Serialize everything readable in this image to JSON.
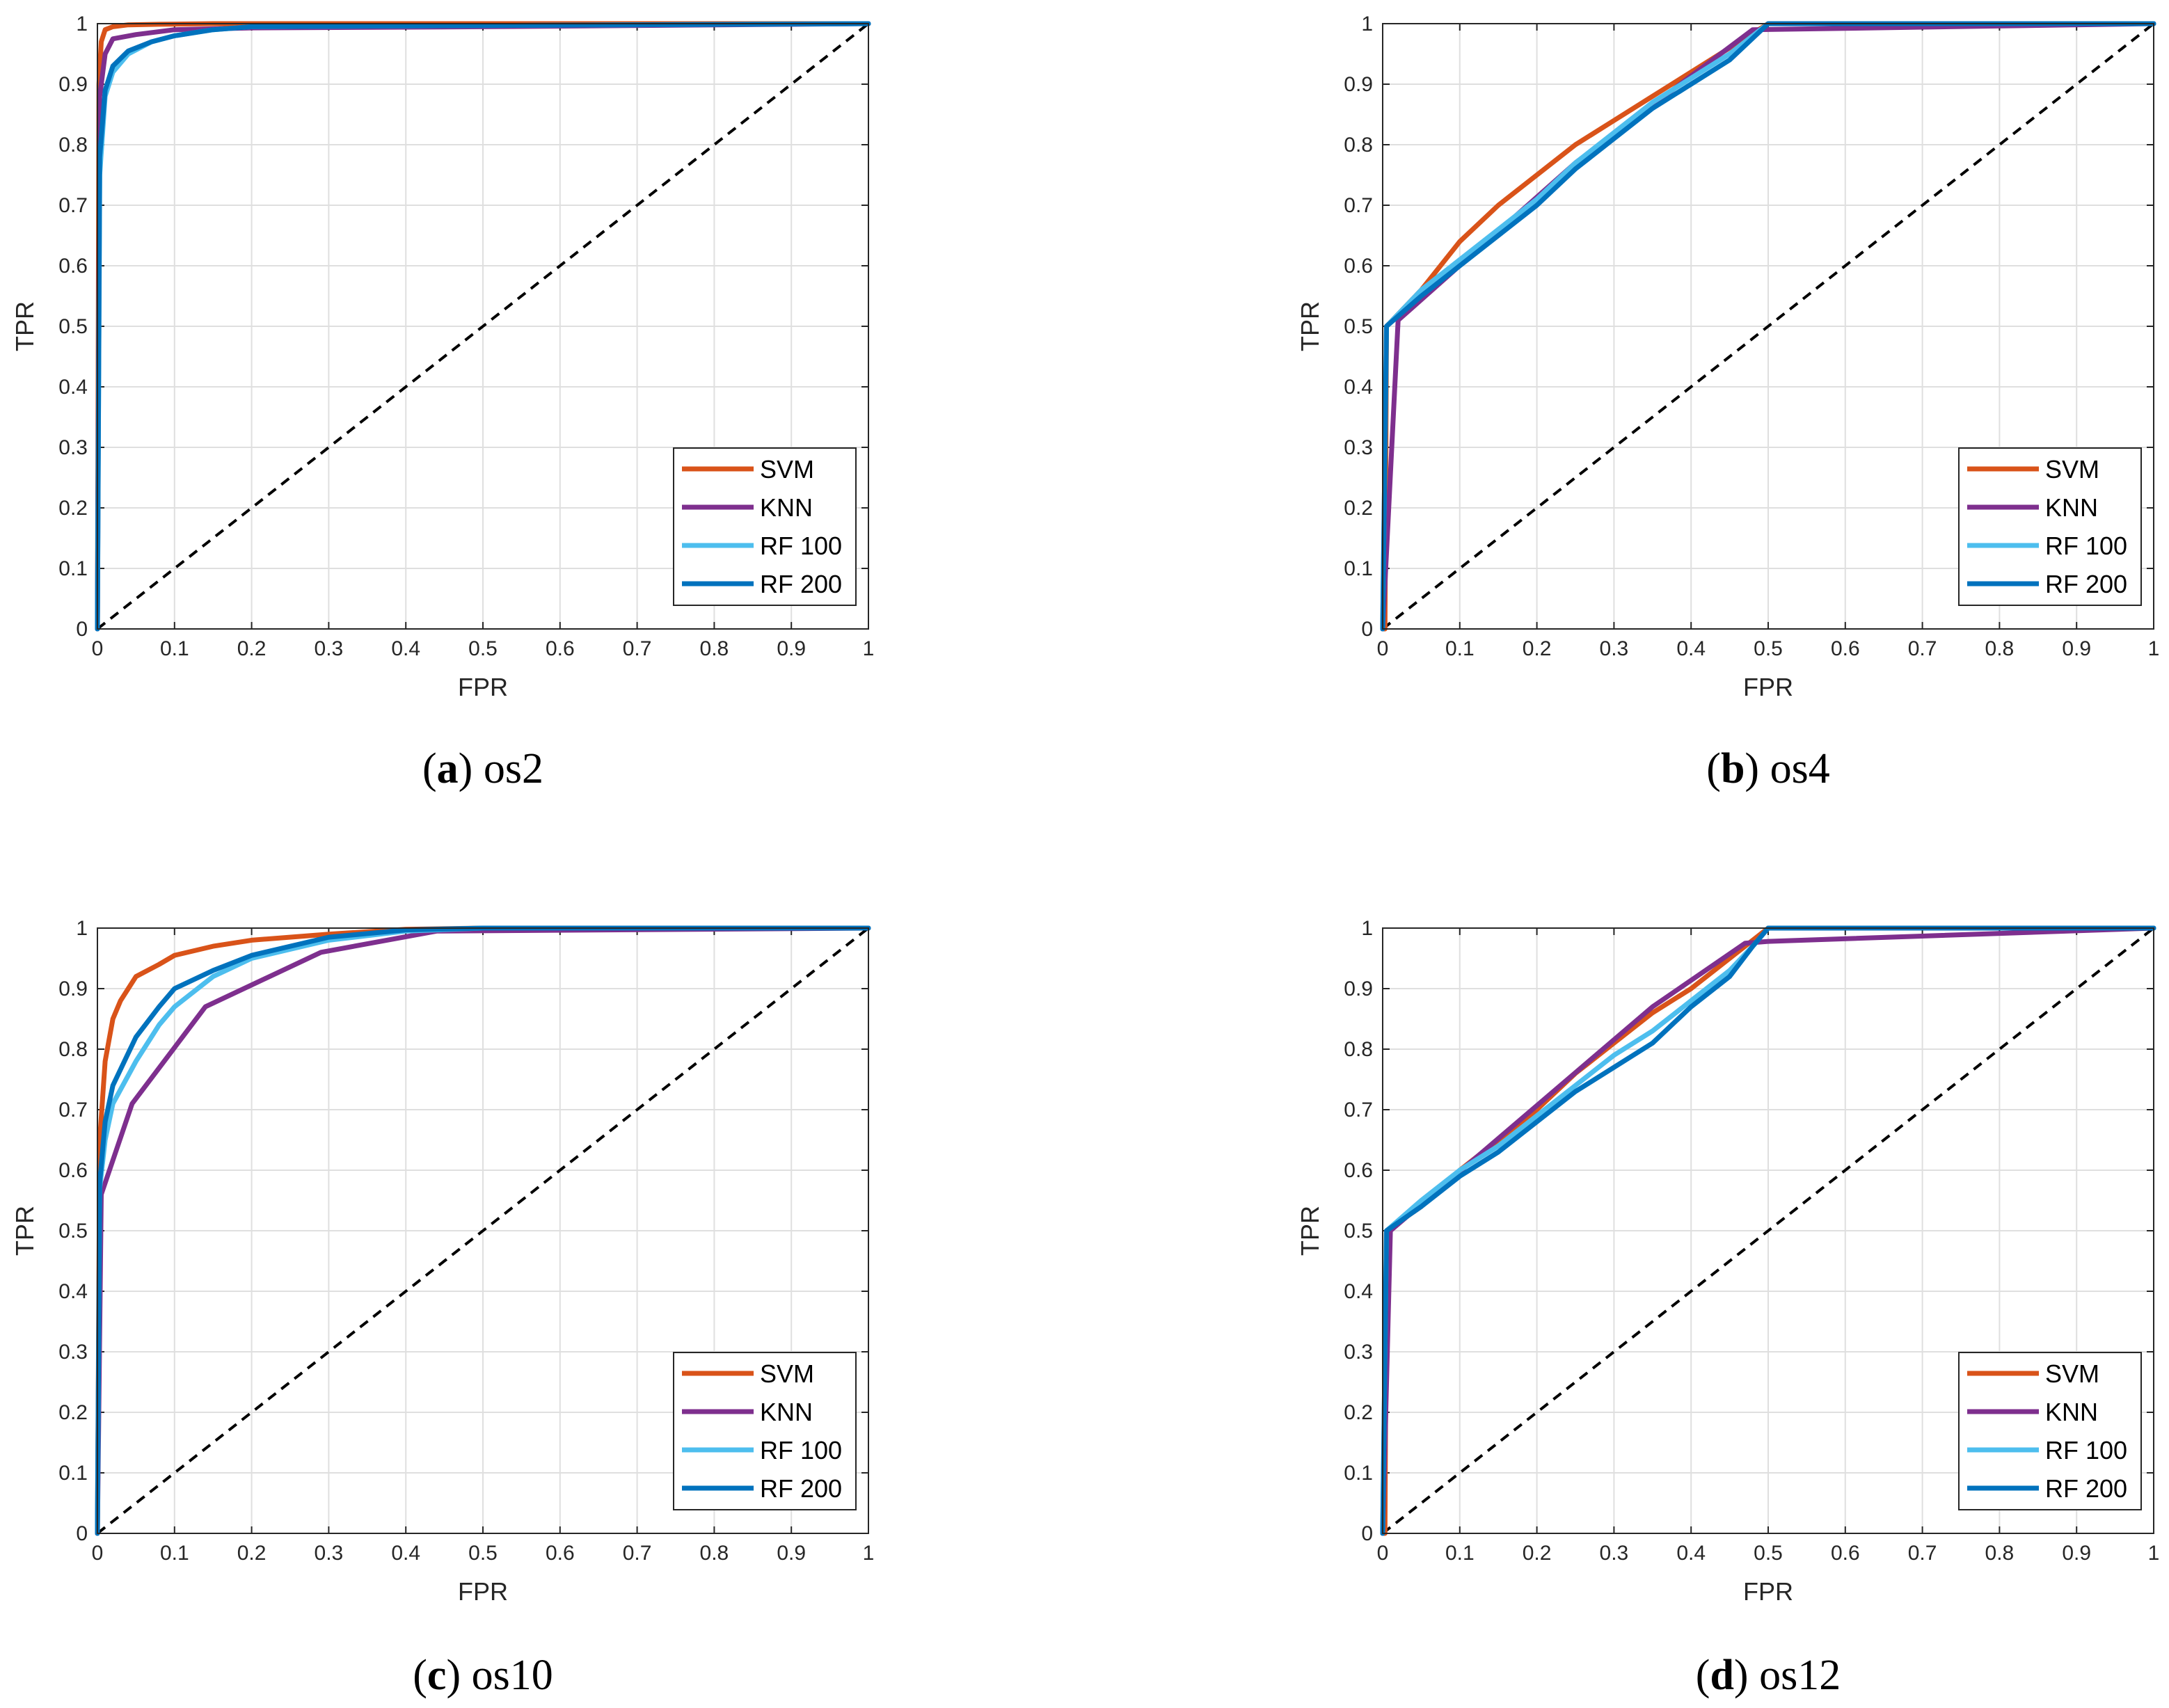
{
  "chart_data": [
    {
      "type": "line",
      "panel": "a",
      "caption": {
        "letter": "a",
        "name": "os2"
      },
      "xlabel": "FPR",
      "ylabel": "TPR",
      "xlim": [
        0,
        1
      ],
      "ylim": [
        0,
        1
      ],
      "grid": true,
      "legend_position": "bottom-right",
      "x_ticks": [
        "0",
        "0.1",
        "0.2",
        "0.3",
        "0.4",
        "0.5",
        "0.6",
        "0.7",
        "0.8",
        "0.9",
        "1"
      ],
      "y_ticks": [
        "0",
        "0.1",
        "0.2",
        "0.3",
        "0.4",
        "0.5",
        "0.6",
        "0.7",
        "0.8",
        "0.9",
        "1"
      ],
      "reference_line": {
        "style": "dashed",
        "x": [
          0,
          1
        ],
        "y": [
          0,
          1
        ]
      },
      "series": [
        {
          "name": "SVM",
          "color": "#D95319",
          "x": [
            0,
            0.002,
            0.005,
            0.01,
            0.02,
            0.04,
            0.08,
            0.15,
            1
          ],
          "y": [
            0,
            0.9,
            0.97,
            0.99,
            0.995,
            0.998,
            0.999,
            1,
            1
          ]
        },
        {
          "name": "KNN",
          "color": "#7E2F8E",
          "x": [
            0,
            0.003,
            0.01,
            0.02,
            0.05,
            0.1,
            0.2,
            0.5,
            1
          ],
          "y": [
            0,
            0.88,
            0.95,
            0.975,
            0.982,
            0.99,
            0.993,
            0.995,
            1
          ]
        },
        {
          "name": "RF 100",
          "color": "#4DBEEE",
          "x": [
            0,
            0.003,
            0.01,
            0.02,
            0.04,
            0.07,
            0.1,
            0.15,
            0.2,
            1
          ],
          "y": [
            0,
            0.75,
            0.88,
            0.92,
            0.95,
            0.97,
            0.98,
            0.99,
            0.995,
            1
          ]
        },
        {
          "name": "RF 200",
          "color": "#0072BD",
          "x": [
            0,
            0.003,
            0.01,
            0.02,
            0.04,
            0.07,
            0.1,
            0.15,
            0.2,
            1
          ],
          "y": [
            0,
            0.78,
            0.89,
            0.93,
            0.955,
            0.97,
            0.98,
            0.99,
            0.995,
            1
          ]
        }
      ]
    },
    {
      "type": "line",
      "panel": "b",
      "caption": {
        "letter": "b",
        "name": "os4"
      },
      "xlabel": "FPR",
      "ylabel": "TPR",
      "xlim": [
        0,
        1
      ],
      "ylim": [
        0,
        1
      ],
      "grid": true,
      "legend_position": "bottom-right",
      "x_ticks": [
        "0",
        "0.1",
        "0.2",
        "0.3",
        "0.4",
        "0.5",
        "0.6",
        "0.7",
        "0.8",
        "0.9",
        "1"
      ],
      "y_ticks": [
        "0",
        "0.1",
        "0.2",
        "0.3",
        "0.4",
        "0.5",
        "0.6",
        "0.7",
        "0.8",
        "0.9",
        "1"
      ],
      "reference_line": {
        "style": "dashed",
        "x": [
          0,
          1
        ],
        "y": [
          0,
          1
        ]
      },
      "series": [
        {
          "name": "SVM",
          "color": "#D95319",
          "x": [
            0,
            0.003,
            0.005,
            0.02,
            0.05,
            0.1,
            0.15,
            0.2,
            0.25,
            0.3,
            0.35,
            0.4,
            0.45,
            0.5,
            1
          ],
          "y": [
            0,
            0,
            0.5,
            0.52,
            0.56,
            0.64,
            0.7,
            0.75,
            0.8,
            0.84,
            0.88,
            0.92,
            0.96,
            1,
            1
          ]
        },
        {
          "name": "KNN",
          "color": "#7E2F8E",
          "x": [
            0,
            0.02,
            0.25,
            0.48,
            1
          ],
          "y": [
            0,
            0.51,
            0.77,
            0.99,
            1
          ]
        },
        {
          "name": "RF 100",
          "color": "#4DBEEE",
          "x": [
            0,
            0.005,
            0.05,
            0.1,
            0.15,
            0.2,
            0.25,
            0.3,
            0.35,
            0.4,
            0.45,
            0.5,
            1
          ],
          "y": [
            0,
            0.5,
            0.56,
            0.61,
            0.66,
            0.71,
            0.77,
            0.82,
            0.87,
            0.91,
            0.95,
            1,
            1
          ]
        },
        {
          "name": "RF 200",
          "color": "#0072BD",
          "x": [
            0,
            0.005,
            0.05,
            0.1,
            0.15,
            0.2,
            0.25,
            0.3,
            0.35,
            0.4,
            0.45,
            0.5,
            1
          ],
          "y": [
            0,
            0.5,
            0.55,
            0.6,
            0.65,
            0.7,
            0.76,
            0.81,
            0.86,
            0.9,
            0.94,
            1,
            1
          ]
        }
      ]
    },
    {
      "type": "line",
      "panel": "c",
      "caption": {
        "letter": "c",
        "name": "os10"
      },
      "xlabel": "FPR",
      "ylabel": "TPR",
      "xlim": [
        0,
        1
      ],
      "ylim": [
        0,
        1
      ],
      "grid": true,
      "legend_position": "bottom-right",
      "x_ticks": [
        "0",
        "0.1",
        "0.2",
        "0.3",
        "0.4",
        "0.5",
        "0.6",
        "0.7",
        "0.8",
        "0.9",
        "1"
      ],
      "y_ticks": [
        "0",
        "0.1",
        "0.2",
        "0.3",
        "0.4",
        "0.5",
        "0.6",
        "0.7",
        "0.8",
        "0.9",
        "1"
      ],
      "reference_line": {
        "style": "dashed",
        "x": [
          0,
          1
        ],
        "y": [
          0,
          1
        ]
      },
      "series": [
        {
          "name": "SVM",
          "color": "#D95319",
          "x": [
            0,
            0.003,
            0.01,
            0.02,
            0.03,
            0.05,
            0.08,
            0.1,
            0.15,
            0.2,
            0.3,
            0.4,
            0.5,
            1
          ],
          "y": [
            0,
            0.65,
            0.78,
            0.85,
            0.88,
            0.92,
            0.94,
            0.955,
            0.97,
            0.98,
            0.99,
            0.998,
            1,
            1
          ]
        },
        {
          "name": "KNN",
          "color": "#7E2F8E",
          "x": [
            0,
            0.005,
            0.045,
            0.14,
            0.29,
            0.44,
            1
          ],
          "y": [
            0,
            0.56,
            0.71,
            0.87,
            0.96,
            0.995,
            1
          ]
        },
        {
          "name": "RF 100",
          "color": "#4DBEEE",
          "x": [
            0,
            0.003,
            0.01,
            0.02,
            0.05,
            0.08,
            0.1,
            0.15,
            0.2,
            0.3,
            0.4,
            0.5,
            1
          ],
          "y": [
            0,
            0.57,
            0.65,
            0.71,
            0.78,
            0.84,
            0.87,
            0.92,
            0.95,
            0.98,
            0.995,
            1,
            1
          ]
        },
        {
          "name": "RF 200",
          "color": "#0072BD",
          "x": [
            0,
            0.003,
            0.01,
            0.02,
            0.05,
            0.08,
            0.1,
            0.15,
            0.2,
            0.3,
            0.4,
            0.5,
            1
          ],
          "y": [
            0,
            0.58,
            0.68,
            0.74,
            0.82,
            0.87,
            0.9,
            0.93,
            0.955,
            0.985,
            0.997,
            1,
            1
          ]
        }
      ]
    },
    {
      "type": "line",
      "panel": "d",
      "caption": {
        "letter": "d",
        "name": "os12"
      },
      "xlabel": "FPR",
      "ylabel": "TPR",
      "xlim": [
        0,
        1
      ],
      "ylim": [
        0,
        1
      ],
      "grid": true,
      "legend_position": "bottom-right",
      "x_ticks": [
        "0",
        "0.1",
        "0.2",
        "0.3",
        "0.4",
        "0.5",
        "0.6",
        "0.7",
        "0.8",
        "0.9",
        "1"
      ],
      "y_ticks": [
        "0",
        "0.1",
        "0.2",
        "0.3",
        "0.4",
        "0.5",
        "0.6",
        "0.7",
        "0.8",
        "0.9",
        "1"
      ],
      "reference_line": {
        "style": "dashed",
        "x": [
          0,
          1
        ],
        "y": [
          0,
          1
        ]
      },
      "series": [
        {
          "name": "SVM",
          "color": "#D95319",
          "x": [
            0,
            0.003,
            0.005,
            0.05,
            0.1,
            0.15,
            0.2,
            0.25,
            0.3,
            0.35,
            0.4,
            0.45,
            0.5,
            1
          ],
          "y": [
            0,
            0,
            0.5,
            0.54,
            0.6,
            0.65,
            0.7,
            0.76,
            0.81,
            0.86,
            0.9,
            0.95,
            1,
            1
          ]
        },
        {
          "name": "KNN",
          "color": "#7E2F8E",
          "x": [
            0,
            0.01,
            0.35,
            0.47,
            0.5,
            1
          ],
          "y": [
            0,
            0.5,
            0.87,
            0.975,
            0.978,
            1
          ]
        },
        {
          "name": "RF 100",
          "color": "#4DBEEE",
          "x": [
            0,
            0.005,
            0.05,
            0.1,
            0.15,
            0.2,
            0.25,
            0.3,
            0.35,
            0.4,
            0.45,
            0.48,
            0.5,
            1
          ],
          "y": [
            0,
            0.5,
            0.55,
            0.6,
            0.64,
            0.69,
            0.74,
            0.79,
            0.83,
            0.88,
            0.93,
            0.97,
            1,
            1
          ]
        },
        {
          "name": "RF 200",
          "color": "#0072BD",
          "x": [
            0,
            0.005,
            0.05,
            0.1,
            0.15,
            0.2,
            0.25,
            0.3,
            0.35,
            0.4,
            0.45,
            0.48,
            0.5,
            1
          ],
          "y": [
            0,
            0.5,
            0.54,
            0.59,
            0.63,
            0.68,
            0.73,
            0.77,
            0.81,
            0.87,
            0.92,
            0.97,
            1,
            1
          ]
        }
      ]
    }
  ]
}
